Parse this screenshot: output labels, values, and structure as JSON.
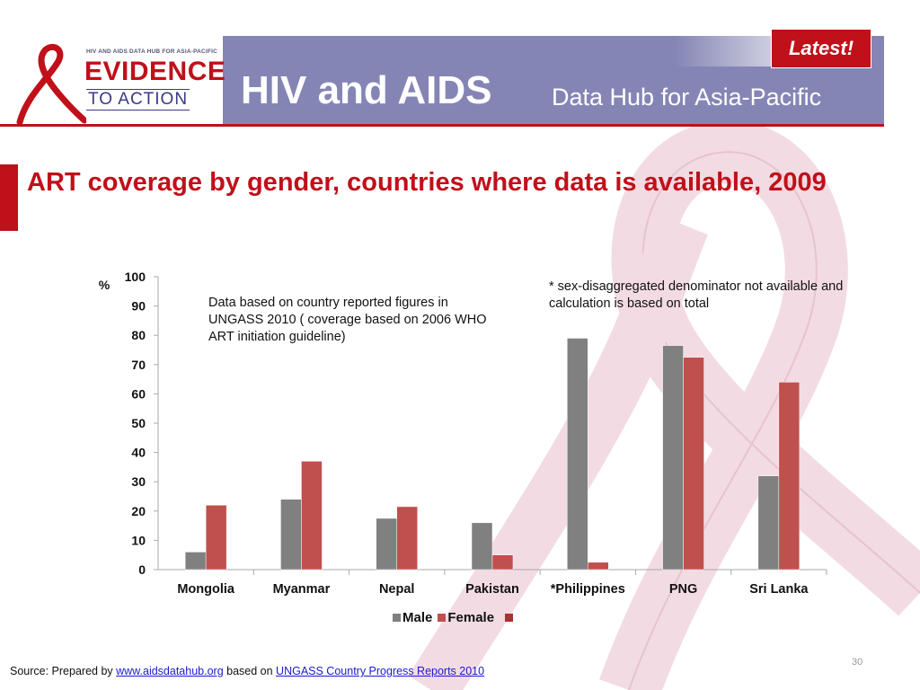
{
  "header": {
    "logo_small": "HIV AND AIDS DATA HUB FOR ASIA-PACIFIC",
    "logo_line1": "EVIDENCE",
    "logo_line2": "TO ACTION",
    "title_big": "HIV and AIDS",
    "title_small": "Data Hub for Asia-Pacific",
    "badge": "Latest!"
  },
  "colors": {
    "accent_red": "#c0101a",
    "header_purple": "#8585b5",
    "male": "#808080",
    "female": "#c0504d",
    "extra_series": "#a83232"
  },
  "chart_data": {
    "type": "bar",
    "title": "ART coverage by gender, countries where data is available, 2009",
    "ylabel": "%",
    "xlabel": "",
    "ylim": [
      0,
      100
    ],
    "yticks": [
      0,
      10,
      20,
      30,
      40,
      50,
      60,
      70,
      80,
      90,
      100
    ],
    "categories": [
      "Mongolia",
      "Myanmar",
      "Nepal",
      "Pakistan",
      "*Philippines",
      "PNG",
      "Sri Lanka"
    ],
    "series": [
      {
        "name": "Male",
        "color": "#808080",
        "values": [
          6,
          24,
          17.5,
          16,
          79,
          76.5,
          32
        ]
      },
      {
        "name": "Female",
        "color": "#c0504d",
        "values": [
          22,
          37,
          21.5,
          5,
          2.5,
          72.5,
          64
        ]
      }
    ],
    "legend_extra_color": "#a83232",
    "legend_position": "bottom",
    "grid": false,
    "annotations": [
      "Data based on country reported  figures in UNGASS 2010  ( coverage based on 2006 WHO ART initiation guideline)",
      "* sex-disaggregated denominator  not available and calculation is based on total"
    ]
  },
  "footer": {
    "source_prefix": "Source:  Prepared by ",
    "link1": "www.aidsdatahub.org",
    "middle": " based on ",
    "link2": "UNGASS Country Progress Reports 2010",
    "page_number": "30"
  }
}
